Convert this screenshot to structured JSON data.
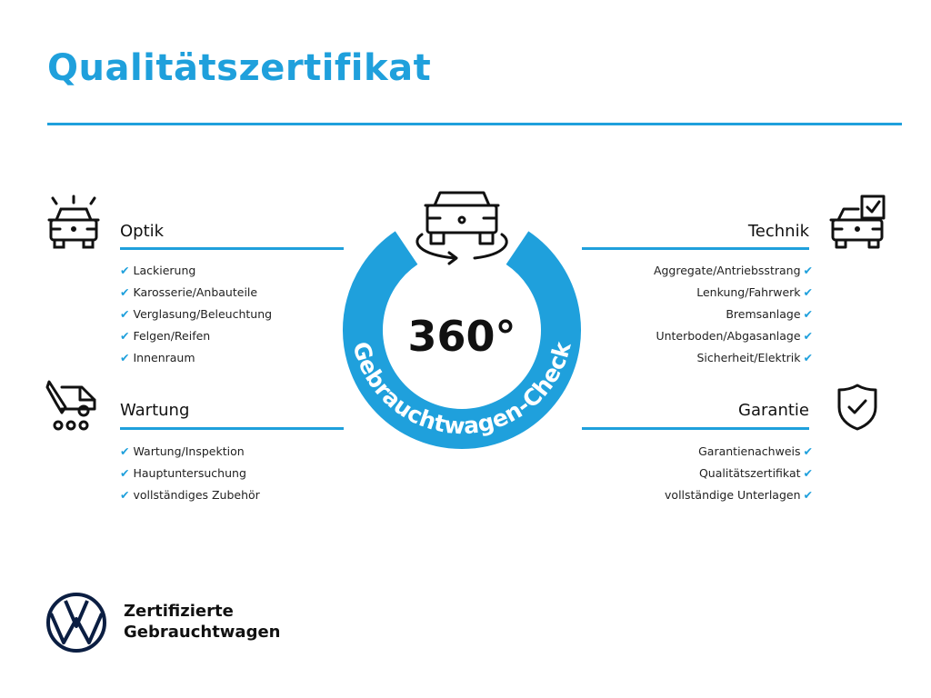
{
  "title": "Qualitätszertifikat",
  "accent_color": "#1fa0dc",
  "center": {
    "value": "360°",
    "arc_label": "Gebrauchtwagen-Check",
    "icon": "car-rotate-icon"
  },
  "sections": {
    "optik": {
      "title": "Optik",
      "icon": "car-lights-icon",
      "items": [
        "Lackierung",
        "Karosserie/Anbauteile",
        "Verglasung/Beleuchtung",
        "Felgen/Reifen",
        "Innenraum"
      ]
    },
    "wartung": {
      "title": "Wartung",
      "icon": "service-van-icon",
      "items": [
        "Wartung/Inspektion",
        "Hauptuntersuchung",
        "vollständiges Zubehör"
      ]
    },
    "technik": {
      "title": "Technik",
      "icon": "car-checklist-icon",
      "items": [
        "Aggregate/Antriebsstrang",
        "Lenkung/Fahrwerk",
        "Bremsanlage",
        "Unterboden/Abgasanlage",
        "Sicherheit/Elektrik"
      ]
    },
    "garantie": {
      "title": "Garantie",
      "icon": "shield-check-icon",
      "items": [
        "Garantienachweis",
        "Qualitätszertifikat",
        "vollständige Unterlagen"
      ]
    }
  },
  "check_glyph": "✔",
  "brand": {
    "line1": "Zertifizierte",
    "line2": "Gebrauchtwagen",
    "logo": "vw-logo"
  }
}
